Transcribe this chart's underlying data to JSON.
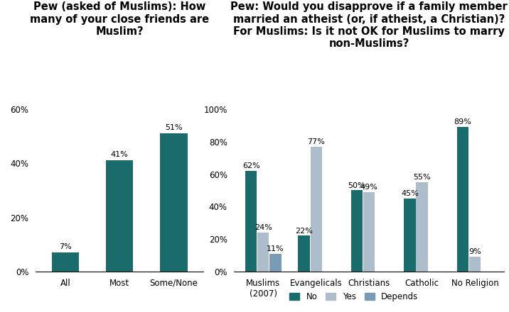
{
  "chart1": {
    "title": "Pew (asked of Muslims): How\nmany of your close friends are\nMuslim?",
    "categories": [
      "All",
      "Most",
      "Some/None"
    ],
    "values": [
      7,
      41,
      51
    ],
    "bar_color": "#1a6b6b",
    "ylim": [
      0,
      60
    ],
    "yticks": [
      0,
      20,
      40,
      60
    ],
    "ytick_labels": [
      "0%",
      "20%",
      "40%",
      "60%"
    ]
  },
  "chart2": {
    "title": "Pew: Would you disapprove if a family member\nmarried an atheist (or, if atheist, a Christian)?\nFor Muslims: Is it not OK for Muslims to marry\nnon-Muslims?",
    "categories": [
      "Muslims\n(2007)",
      "Evangelicals",
      "Christians",
      "Catholic",
      "No Religion"
    ],
    "no_values": [
      62,
      22,
      50,
      45,
      89
    ],
    "yes_values": [
      24,
      77,
      49,
      55,
      9
    ],
    "dep_values": [
      11,
      0,
      0,
      0,
      0
    ],
    "no_color": "#1a6b6b",
    "yes_color": "#adbdcc",
    "dep_color": "#7a9bb5",
    "ylim": [
      0,
      100
    ],
    "yticks": [
      0,
      20,
      40,
      60,
      80,
      100
    ],
    "ytick_labels": [
      "0%",
      "20%",
      "40%",
      "60%",
      "80%",
      "100%"
    ],
    "legend_labels": [
      "No",
      "Yes",
      "Depends"
    ]
  },
  "background_color": "#ffffff",
  "title_fontsize": 10.5,
  "label_fontsize": 8.5,
  "value_fontsize": 8.0
}
